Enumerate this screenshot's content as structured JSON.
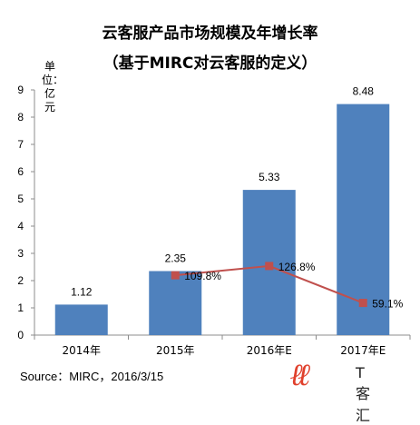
{
  "title_line1": "云客服产品市场规模及年增长率",
  "title_line2": "（基于MIRC对云客服的定义）",
  "ylabel": "单位：亿元",
  "source": "Source：MIRC，2016/3/15",
  "logo": {
    "mark": "ℓℓ",
    "text": "T客汇",
    "color": "#e0402c"
  },
  "chart_data": {
    "type": "bar",
    "categories": [
      "2014年",
      "2015年",
      "2016年E",
      "2017年E"
    ],
    "series": [
      {
        "values": [
          1.12,
          2.35,
          5.33,
          8.48
        ],
        "color": "#4f81bd",
        "labels": [
          "1.12",
          "2.35",
          "5.33",
          "8.48"
        ]
      },
      {
        "type": "line",
        "values": [
          null,
          109.8,
          126.8,
          59.1
        ],
        "color": "#c0504d",
        "labels": [
          "",
          "109.8%",
          "126.8%",
          "59.1%"
        ]
      }
    ],
    "ylim": [
      0,
      9
    ],
    "yticks": [
      0,
      1,
      2,
      3,
      4,
      5,
      6,
      7,
      8,
      9
    ],
    "y2lim": [
      0,
      450
    ],
    "grid": false,
    "legend": "none"
  }
}
